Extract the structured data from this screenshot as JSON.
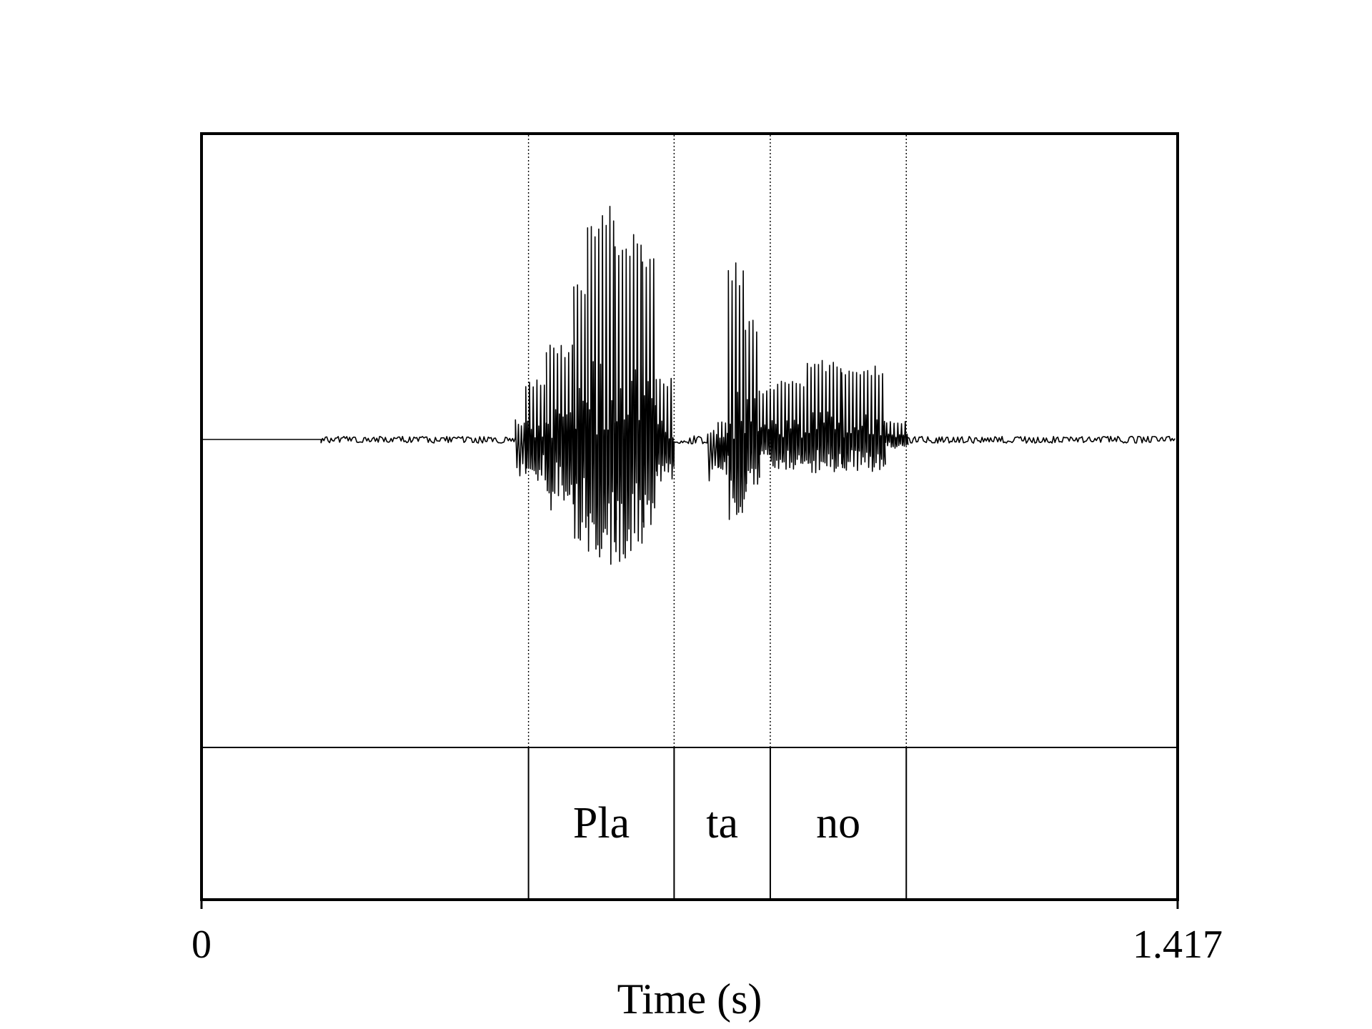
{
  "chart_data": {
    "type": "waveform",
    "xlabel": "Time (s)",
    "xlim": [
      0,
      1.417
    ],
    "tick_labels": [
      "0",
      "1.417"
    ],
    "ticks": [
      0,
      1.417
    ],
    "amplitude_range": [
      -1,
      1
    ],
    "boundaries": [
      0.474,
      0.686,
      0.826,
      1.024
    ],
    "intervals": [
      {
        "start": 0,
        "end": 0.474,
        "label": ""
      },
      {
        "start": 0.474,
        "end": 0.686,
        "label": "Pla"
      },
      {
        "start": 0.686,
        "end": 0.826,
        "label": "ta"
      },
      {
        "start": 0.826,
        "end": 1.024,
        "label": "no"
      },
      {
        "start": 1.024,
        "end": 1.417,
        "label": ""
      }
    ],
    "waveform_segments": [
      {
        "start": 0.0,
        "end": 0.172,
        "pos": 0.0,
        "neg": 0.0,
        "kind": "flat"
      },
      {
        "start": 0.172,
        "end": 0.455,
        "pos": 0.01,
        "neg": 0.012,
        "kind": "noise"
      },
      {
        "start": 0.455,
        "end": 0.47,
        "pos": 0.07,
        "neg": 0.13,
        "kind": "burst"
      },
      {
        "start": 0.47,
        "end": 0.5,
        "pos": 0.2,
        "neg": 0.15,
        "kind": "voiced"
      },
      {
        "start": 0.5,
        "end": 0.54,
        "pos": 0.31,
        "neg": 0.23,
        "kind": "voiced"
      },
      {
        "start": 0.54,
        "end": 0.56,
        "pos": 0.54,
        "neg": 0.37,
        "kind": "voiced"
      },
      {
        "start": 0.56,
        "end": 0.6,
        "pos": 0.76,
        "neg": 0.43,
        "kind": "voiced"
      },
      {
        "start": 0.6,
        "end": 0.64,
        "pos": 0.7,
        "neg": 0.44,
        "kind": "voiced"
      },
      {
        "start": 0.64,
        "end": 0.66,
        "pos": 0.59,
        "neg": 0.3,
        "kind": "voiced"
      },
      {
        "start": 0.66,
        "end": 0.686,
        "pos": 0.2,
        "neg": 0.15,
        "kind": "voiced"
      },
      {
        "start": 0.686,
        "end": 0.735,
        "pos": 0.012,
        "neg": 0.014,
        "kind": "noise"
      },
      {
        "start": 0.735,
        "end": 0.75,
        "pos": 0.03,
        "neg": 0.14,
        "kind": "burst"
      },
      {
        "start": 0.75,
        "end": 0.765,
        "pos": 0.06,
        "neg": 0.12,
        "kind": "voiced"
      },
      {
        "start": 0.765,
        "end": 0.79,
        "pos": 0.58,
        "neg": 0.28,
        "kind": "voiced"
      },
      {
        "start": 0.79,
        "end": 0.81,
        "pos": 0.4,
        "neg": 0.15,
        "kind": "voiced"
      },
      {
        "start": 0.81,
        "end": 0.826,
        "pos": 0.16,
        "neg": 0.07,
        "kind": "voiced"
      },
      {
        "start": 0.826,
        "end": 0.88,
        "pos": 0.19,
        "neg": 0.1,
        "kind": "voiced"
      },
      {
        "start": 0.88,
        "end": 0.93,
        "pos": 0.26,
        "neg": 0.11,
        "kind": "voiced"
      },
      {
        "start": 0.93,
        "end": 0.99,
        "pos": 0.24,
        "neg": 0.11,
        "kind": "voiced"
      },
      {
        "start": 0.99,
        "end": 1.024,
        "pos": 0.06,
        "neg": 0.03,
        "kind": "voiced"
      },
      {
        "start": 1.024,
        "end": 1.417,
        "pos": 0.01,
        "neg": 0.012,
        "kind": "noise"
      }
    ],
    "grid": false,
    "legend": "none"
  }
}
